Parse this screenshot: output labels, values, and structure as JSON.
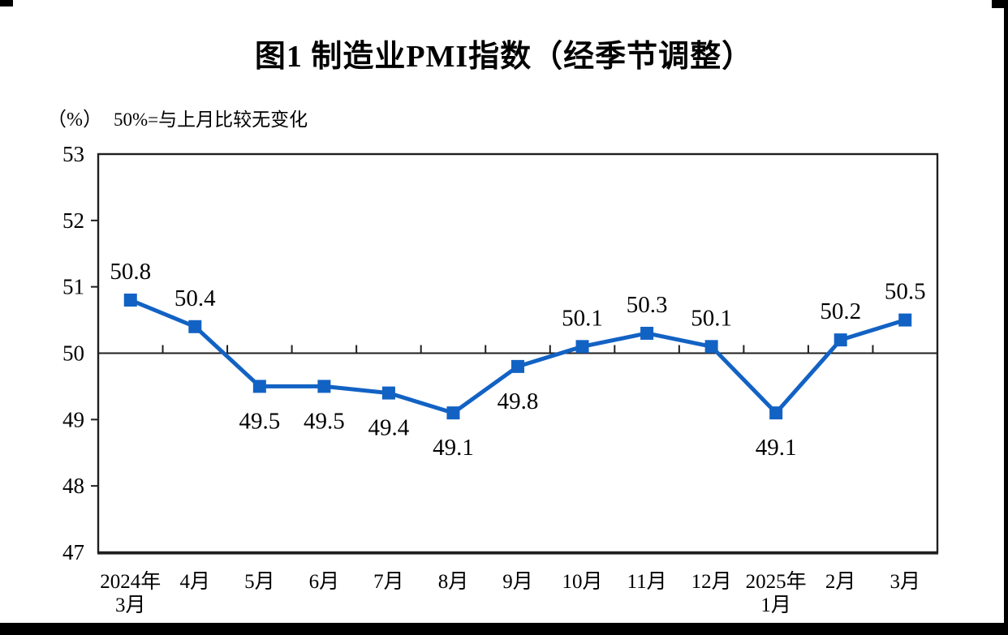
{
  "chart_data": {
    "type": "line",
    "title": "图1  制造业PMI指数（经季节调整）",
    "ylabel_unit": "（%）",
    "subtitle": "50%=与上月比较无变化",
    "categories": [
      "2024年\n3月",
      "4月",
      "5月",
      "6月",
      "7月",
      "8月",
      "9月",
      "10月",
      "11月",
      "12月",
      "2025年\n1月",
      "2月",
      "3月"
    ],
    "values": [
      50.8,
      50.4,
      49.5,
      49.5,
      49.4,
      49.1,
      49.8,
      50.1,
      50.3,
      50.1,
      49.1,
      50.2,
      50.5
    ],
    "data_labels": [
      "50.8",
      "50.4",
      "49.5",
      "49.5",
      "49.4",
      "49.1",
      "49.8",
      "50.1",
      "50.3",
      "50.1",
      "49.1",
      "50.2",
      "50.5"
    ],
    "y_ticks": [
      53,
      52,
      51,
      50,
      49,
      48,
      47
    ],
    "ylim": [
      47,
      53
    ],
    "reference_line": 50,
    "grid": false,
    "legend": "none",
    "line_color": "#1262C4",
    "marker": "square",
    "axis_color": "#1f1f1f"
  }
}
